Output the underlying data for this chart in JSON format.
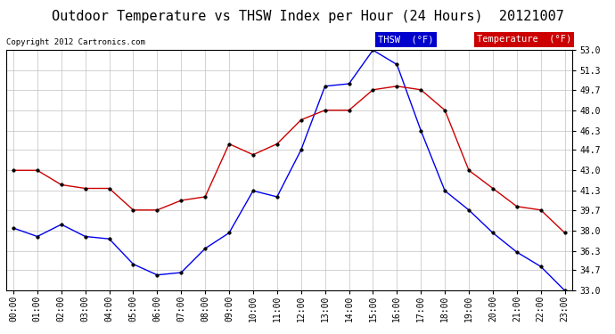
{
  "title": "Outdoor Temperature vs THSW Index per Hour (24 Hours)  20121007",
  "copyright": "Copyright 2012 Cartronics.com",
  "legend_thsw": "THSW  (°F)",
  "legend_temp": "Temperature  (°F)",
  "hours": [
    "00:00",
    "01:00",
    "02:00",
    "03:00",
    "04:00",
    "05:00",
    "06:00",
    "07:00",
    "08:00",
    "09:00",
    "10:00",
    "11:00",
    "12:00",
    "13:00",
    "14:00",
    "15:00",
    "16:00",
    "17:00",
    "18:00",
    "19:00",
    "20:00",
    "21:00",
    "22:00",
    "23:00"
  ],
  "thsw": [
    38.2,
    37.5,
    38.5,
    37.5,
    37.3,
    35.2,
    34.3,
    34.5,
    36.5,
    37.8,
    41.3,
    40.8,
    44.7,
    50.0,
    50.2,
    53.0,
    51.8,
    46.3,
    41.3,
    39.7,
    37.8,
    36.2,
    35.0,
    33.0
  ],
  "temperature": [
    43.0,
    43.0,
    41.8,
    41.5,
    41.5,
    39.7,
    39.7,
    40.5,
    40.8,
    45.2,
    44.3,
    45.2,
    47.2,
    48.0,
    48.0,
    49.7,
    50.0,
    49.7,
    48.0,
    43.0,
    41.5,
    40.0,
    39.7,
    37.8
  ],
  "ylim_min": 33.0,
  "ylim_max": 53.0,
  "yticks": [
    33.0,
    34.7,
    36.3,
    38.0,
    39.7,
    41.3,
    43.0,
    44.7,
    46.3,
    48.0,
    49.7,
    51.3,
    53.0
  ],
  "thsw_color": "#0000ee",
  "temp_color": "#cc0000",
  "bg_color": "#ffffff",
  "grid_color": "#c0c0c0",
  "title_fontsize": 11,
  "label_fontsize": 7,
  "copyright_fontsize": 6.5,
  "legend_fontsize": 7.5
}
